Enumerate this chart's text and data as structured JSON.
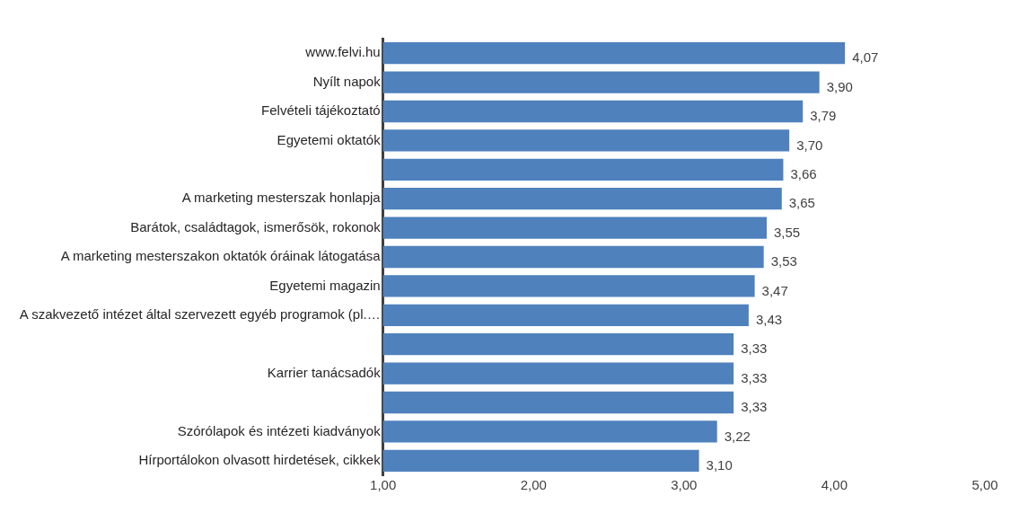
{
  "chart_data": {
    "type": "bar",
    "orientation": "horizontal",
    "categories": [
      "www.felvi.hu",
      "Nyílt napok",
      "Felvételi tájékoztató",
      "Egyetemi oktatók",
      null,
      "A marketing mesterszak honlapja",
      "Barátok, családtagok, ismerősök, rokonok",
      "A marketing mesterszakon oktatók óráinak látogatása",
      "Egyetemi magazin",
      "A szakvezető intézet által szervezett egyéb programok (pl.…",
      null,
      "Karrier tanácsadók",
      null,
      "Szórólapok és intézeti kiadványok",
      "Hírportálokon olvasott hirdetések, cikkek"
    ],
    "values": [
      4.07,
      3.9,
      3.79,
      3.7,
      3.66,
      3.65,
      3.55,
      3.53,
      3.47,
      3.43,
      3.33,
      3.33,
      3.33,
      3.22,
      3.1
    ],
    "value_labels": [
      "4,07",
      "3,90",
      "3,79",
      "3,70",
      "3,66",
      "3,65",
      "3,55",
      "3,53",
      "3,47",
      "3,43",
      "3,33",
      "3,33",
      "3,33",
      "3,22",
      "3,10"
    ],
    "color": "#4f81bd",
    "xlim": [
      1,
      5
    ],
    "xticks": [
      {
        "value": 1,
        "label": "1,00"
      },
      {
        "value": 2,
        "label": "2,00"
      },
      {
        "value": 3,
        "label": "3,00"
      },
      {
        "value": 4,
        "label": "4,00"
      },
      {
        "value": 5,
        "label": "5,00"
      }
    ],
    "grid": false,
    "legend": false
  }
}
